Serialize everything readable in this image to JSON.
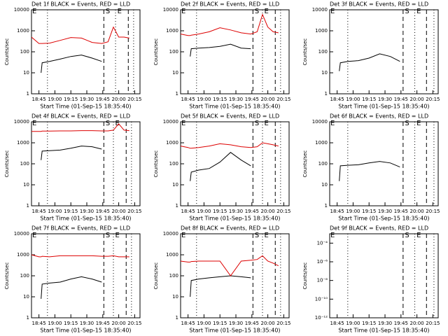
{
  "chart_data": [
    {
      "type": "line",
      "title": "Det 1f BLACK = Events, RED = LLD",
      "ylabel": "Counts/sec",
      "xlabel": "Start Time (01-Sep-15 18:35:40)",
      "log_y": true,
      "xlim": [
        "18:38",
        "20:20"
      ],
      "xticks": [
        "18:45",
        "19:00",
        "19:15",
        "19:30",
        "19:45",
        "20:00",
        "20:15"
      ],
      "ylim": [
        1,
        10000
      ],
      "yticks": [
        1,
        10,
        100,
        1000,
        10000
      ],
      "x": [
        "18:38",
        "18:45",
        "18:47",
        "18:48",
        "18:55",
        "19:05",
        "19:15",
        "19:25",
        "19:35",
        "19:44",
        "19:50",
        "19:55",
        "20:00",
        "20:05",
        "20:10"
      ],
      "series": [
        {
          "name": "Events",
          "color": "#000000",
          "values": [
            null,
            null,
            10,
            30,
            35,
            45,
            60,
            70,
            50,
            35,
            null,
            null,
            null,
            null,
            null
          ]
        },
        {
          "name": "LLD",
          "color": "#dd0000",
          "values": [
            500,
            250,
            250,
            250,
            260,
            350,
            480,
            450,
            280,
            250,
            300,
            1500,
            500,
            500,
            450
          ]
        }
      ],
      "lines": [
        {
          "x": "18:53",
          "style": "dotted"
        },
        {
          "x": "19:46",
          "style": "dashed"
        },
        {
          "x": "19:57",
          "style": "dotted"
        },
        {
          "x": "20:09",
          "style": "dashed"
        },
        {
          "x": "20:14",
          "style": "dotted"
        }
      ],
      "annotations": [
        {
          "x": "18:38",
          "text": "E"
        },
        {
          "x": "19:47",
          "text": "S"
        },
        {
          "x": "19:58",
          "text": "E"
        }
      ]
    },
    {
      "type": "line",
      "title": "Det 2f BLACK = Events, RED = LLD",
      "ylabel": "Counts/sec",
      "xlabel": "Start Time (01-Sep-15 18:35:40)",
      "log_y": true,
      "xlim": [
        "18:38",
        "20:20"
      ],
      "xticks": [
        "18:45",
        "19:00",
        "19:15",
        "19:30",
        "19:45",
        "20:00",
        "20:15"
      ],
      "ylim": [
        1,
        10000
      ],
      "yticks": [
        1,
        10,
        100,
        1000,
        10000
      ],
      "x": [
        "18:38",
        "18:45",
        "18:47",
        "18:48",
        "18:55",
        "19:05",
        "19:15",
        "19:25",
        "19:35",
        "19:44",
        "19:50",
        "19:55",
        "20:00",
        "20:05",
        "20:10"
      ],
      "series": [
        {
          "name": "Events",
          "color": "#000000",
          "values": [
            null,
            null,
            60,
            140,
            150,
            160,
            180,
            230,
            150,
            140,
            null,
            null,
            null,
            null,
            null
          ]
        },
        {
          "name": "LLD",
          "color": "#dd0000",
          "values": [
            700,
            600,
            600,
            620,
            700,
            900,
            1400,
            1100,
            800,
            700,
            900,
            6000,
            1500,
            900,
            800
          ]
        }
      ],
      "lines": [
        {
          "x": "18:53",
          "style": "dotted"
        },
        {
          "x": "19:46",
          "style": "dashed"
        },
        {
          "x": "19:55",
          "style": "dotted"
        },
        {
          "x": "20:07",
          "style": "dashed"
        },
        {
          "x": "20:12",
          "style": "dotted"
        }
      ],
      "annotations": [
        {
          "x": "18:38",
          "text": "E"
        },
        {
          "x": "19:47",
          "text": "S"
        },
        {
          "x": "19:56",
          "text": "E"
        }
      ]
    },
    {
      "type": "line",
      "title": "Det 3f BLACK = Events, RED = LLD",
      "ylabel": "Counts/sec",
      "xlabel": "Start Time (01-Sep-15 18:35:40)",
      "log_y": true,
      "xlim": [
        "18:38",
        "20:20"
      ],
      "xticks": [
        "18:45",
        "19:00",
        "19:15",
        "19:30",
        "19:45",
        "20:00",
        "20:15"
      ],
      "ylim": [
        1,
        10000
      ],
      "yticks": [
        1,
        10,
        100,
        1000,
        10000
      ],
      "x": [
        "18:38",
        "18:45",
        "18:47",
        "18:48",
        "18:55",
        "19:05",
        "19:15",
        "19:25",
        "19:35",
        "19:44",
        "19:50",
        "19:55",
        "20:00",
        "20:05",
        "20:10"
      ],
      "series": [
        {
          "name": "Events",
          "color": "#000000",
          "values": [
            null,
            null,
            12,
            30,
            35,
            38,
            50,
            80,
            60,
            35,
            null,
            null,
            null,
            null,
            null
          ]
        }
      ],
      "lines": [
        {
          "x": "18:55",
          "style": "dotted"
        },
        {
          "x": "19:47",
          "style": "dashed"
        },
        {
          "x": "19:58",
          "style": "dotted"
        },
        {
          "x": "20:09",
          "style": "dashed"
        },
        {
          "x": "20:16",
          "style": "dotted"
        }
      ],
      "annotations": [
        {
          "x": "18:38",
          "text": "E"
        },
        {
          "x": "19:48",
          "text": "S"
        },
        {
          "x": "19:59",
          "text": "E"
        }
      ]
    },
    {
      "type": "line",
      "title": "Det 4f BLACK = Events, RED = LLD",
      "ylabel": "Counts/sec",
      "xlabel": "Start Time (01-Sep-15 18:35:40)",
      "log_y": true,
      "xlim": [
        "18:38",
        "20:20"
      ],
      "xticks": [
        "18:45",
        "19:00",
        "19:15",
        "19:30",
        "19:45",
        "20:00",
        "20:15"
      ],
      "ylim": [
        1,
        10000
      ],
      "yticks": [
        1,
        10,
        100,
        1000,
        10000
      ],
      "x": [
        "18:38",
        "18:45",
        "18:47",
        "18:48",
        "18:55",
        "19:05",
        "19:15",
        "19:25",
        "19:35",
        "19:44",
        "19:50",
        "19:55",
        "20:00",
        "20:05",
        "20:10"
      ],
      "series": [
        {
          "name": "Events",
          "color": "#000000",
          "values": [
            null,
            null,
            150,
            400,
            420,
            450,
            550,
            700,
            650,
            500,
            null,
            null,
            null,
            null,
            null
          ]
        },
        {
          "name": "LLD",
          "color": "#dd0000",
          "values": [
            3500,
            3500,
            3500,
            3600,
            3600,
            3700,
            3700,
            3800,
            3800,
            3700,
            3700,
            4000,
            8000,
            4000,
            3800
          ]
        }
      ],
      "lines": [
        {
          "x": "18:53",
          "style": "dotted"
        },
        {
          "x": "19:46",
          "style": "dashed"
        },
        {
          "x": "19:55",
          "style": "dotted"
        },
        {
          "x": "20:07",
          "style": "dashed"
        },
        {
          "x": "20:12",
          "style": "dotted"
        }
      ],
      "annotations": [
        {
          "x": "18:38",
          "text": "E"
        },
        {
          "x": "19:47",
          "text": "S"
        },
        {
          "x": "19:56",
          "text": "E"
        }
      ]
    },
    {
      "type": "line",
      "title": "Det 5f BLACK = Events, RED = LLD",
      "ylabel": "Counts/sec",
      "xlabel": "Start Time (01-Sep-15 18:35:40)",
      "log_y": true,
      "xlim": [
        "18:38",
        "20:20"
      ],
      "xticks": [
        "18:45",
        "19:00",
        "19:15",
        "19:30",
        "19:45",
        "20:00",
        "20:15"
      ],
      "ylim": [
        1,
        10000
      ],
      "yticks": [
        1,
        10,
        100,
        1000,
        10000
      ],
      "x": [
        "18:38",
        "18:45",
        "18:47",
        "18:48",
        "18:55",
        "19:05",
        "19:15",
        "19:25",
        "19:35",
        "19:44",
        "19:50",
        "19:55",
        "20:00",
        "20:05",
        "20:10"
      ],
      "series": [
        {
          "name": "Events",
          "color": "#000000",
          "values": [
            null,
            null,
            15,
            40,
            50,
            60,
            120,
            350,
            150,
            80,
            null,
            null,
            null,
            null,
            null
          ]
        },
        {
          "name": "LLD",
          "color": "#dd0000",
          "values": [
            700,
            600,
            550,
            550,
            600,
            700,
            900,
            800,
            650,
            600,
            650,
            1000,
            900,
            800,
            700
          ]
        }
      ],
      "lines": [
        {
          "x": "18:53",
          "style": "dotted"
        },
        {
          "x": "19:46",
          "style": "dashed"
        },
        {
          "x": "19:55",
          "style": "dotted"
        },
        {
          "x": "20:07",
          "style": "dashed"
        },
        {
          "x": "20:12",
          "style": "dotted"
        }
      ],
      "annotations": [
        {
          "x": "18:38",
          "text": "E"
        },
        {
          "x": "19:47",
          "text": "S"
        },
        {
          "x": "19:56",
          "text": "E"
        }
      ]
    },
    {
      "type": "line",
      "title": "Det 6f BLACK = Events, RED = LLD",
      "ylabel": "Counts/sec",
      "xlabel": "Start Time (01-Sep-15 18:35:40)",
      "log_y": true,
      "xlim": [
        "18:38",
        "20:20"
      ],
      "xticks": [
        "18:45",
        "19:00",
        "19:15",
        "19:30",
        "19:45",
        "20:00",
        "20:15"
      ],
      "ylim": [
        1,
        10000
      ],
      "yticks": [
        1,
        10,
        100,
        1000,
        10000
      ],
      "x": [
        "18:38",
        "18:45",
        "18:47",
        "18:48",
        "18:55",
        "19:05",
        "19:15",
        "19:25",
        "19:35",
        "19:44",
        "19:50",
        "19:55",
        "20:00",
        "20:05",
        "20:10"
      ],
      "series": [
        {
          "name": "Events",
          "color": "#000000",
          "values": [
            null,
            null,
            15,
            80,
            85,
            90,
            110,
            130,
            110,
            70,
            null,
            null,
            null,
            null,
            null
          ]
        }
      ],
      "lines": [
        {
          "x": "18:55",
          "style": "dotted"
        },
        {
          "x": "19:47",
          "style": "dashed"
        },
        {
          "x": "19:58",
          "style": "dotted"
        },
        {
          "x": "20:09",
          "style": "dashed"
        },
        {
          "x": "20:16",
          "style": "dotted"
        }
      ],
      "annotations": [
        {
          "x": "18:38",
          "text": "E"
        },
        {
          "x": "19:48",
          "text": "S"
        },
        {
          "x": "19:59",
          "text": "E"
        }
      ]
    },
    {
      "type": "line",
      "title": "Det 7f BLACK = Events, RED = LLD",
      "ylabel": "Counts/sec",
      "xlabel": "Start Time (01-Sep-15 18:35:40)",
      "log_y": true,
      "xlim": [
        "18:38",
        "20:20"
      ],
      "xticks": [
        "18:45",
        "19:00",
        "19:15",
        "19:30",
        "19:45",
        "20:00",
        "20:15"
      ],
      "ylim": [
        1,
        10000
      ],
      "yticks": [
        1,
        10,
        100,
        1000,
        10000
      ],
      "x": [
        "18:38",
        "18:45",
        "18:47",
        "18:48",
        "18:55",
        "19:05",
        "19:15",
        "19:25",
        "19:35",
        "19:44",
        "19:50",
        "19:55",
        "20:00",
        "20:05",
        "20:10"
      ],
      "series": [
        {
          "name": "Events",
          "color": "#000000",
          "values": [
            null,
            null,
            8,
            40,
            45,
            50,
            70,
            90,
            70,
            50,
            null,
            null,
            null,
            null,
            null
          ]
        },
        {
          "name": "LLD",
          "color": "#dd0000",
          "values": [
            1000,
            800,
            800,
            850,
            800,
            900,
            900,
            900,
            900,
            850,
            850,
            900,
            800,
            800,
            800
          ]
        }
      ],
      "lines": [
        {
          "x": "18:53",
          "style": "dotted"
        },
        {
          "x": "19:46",
          "style": "dashed"
        },
        {
          "x": "19:55",
          "style": "dotted"
        },
        {
          "x": "20:07",
          "style": "dashed"
        },
        {
          "x": "20:12",
          "style": "dotted"
        }
      ],
      "annotations": [
        {
          "x": "18:38",
          "text": "E"
        },
        {
          "x": "19:47",
          "text": "S"
        },
        {
          "x": "19:56",
          "text": "E"
        }
      ]
    },
    {
      "type": "line",
      "title": "Det 8f BLACK = Events, RED = LLD",
      "ylabel": "Counts/sec",
      "xlabel": "Start Time (01-Sep-15 18:35:40)",
      "log_y": true,
      "xlim": [
        "18:38",
        "20:20"
      ],
      "xticks": [
        "18:45",
        "19:00",
        "19:15",
        "19:30",
        "19:45",
        "20:00",
        "20:15"
      ],
      "ylim": [
        1,
        10000
      ],
      "yticks": [
        1,
        10,
        100,
        1000,
        10000
      ],
      "x": [
        "18:38",
        "18:45",
        "18:47",
        "18:48",
        "18:55",
        "19:05",
        "19:15",
        "19:25",
        "19:35",
        "19:44",
        "19:50",
        "19:55",
        "20:00",
        "20:05",
        "20:10"
      ],
      "series": [
        {
          "name": "Events",
          "color": "#000000",
          "values": [
            null,
            null,
            10,
            60,
            70,
            80,
            90,
            100,
            90,
            80,
            null,
            null,
            null,
            null,
            null
          ]
        },
        {
          "name": "LLD",
          "color": "#dd0000",
          "values": [
            500,
            450,
            450,
            480,
            500,
            500,
            500,
            100,
            500,
            550,
            600,
            900,
            500,
            400,
            300
          ]
        }
      ],
      "lines": [
        {
          "x": "18:53",
          "style": "dotted"
        },
        {
          "x": "19:46",
          "style": "dashed"
        },
        {
          "x": "19:55",
          "style": "dotted"
        },
        {
          "x": "20:07",
          "style": "dashed"
        },
        {
          "x": "20:12",
          "style": "dotted"
        }
      ],
      "annotations": [
        {
          "x": "18:38",
          "text": "E"
        },
        {
          "x": "19:47",
          "text": "S"
        },
        {
          "x": "19:56",
          "text": "E"
        }
      ]
    },
    {
      "type": "line",
      "title": "Det 9f BLACK = Events, RED = LLD",
      "ylabel": "Counts/sec",
      "xlabel": "Start Time (01-Sep-15 18:35:40)",
      "log_y": true,
      "xlim": [
        "18:38",
        "20:20"
      ],
      "xticks": [
        "18:45",
        "19:00",
        "19:15",
        "19:30",
        "19:45",
        "20:00",
        "20:15"
      ],
      "ylim": [
        1e-12,
        0.001
      ],
      "yticks": [
        {
          "value": 1e-12,
          "label": "10⁻¹²"
        },
        {
          "value": 1e-10,
          "label": "10⁻¹⁰"
        },
        {
          "value": 1e-08,
          "label": "10⁻⁸"
        },
        {
          "value": 1e-06,
          "label": "10⁻⁶"
        },
        {
          "value": 0.0001,
          "label": "10⁻⁴"
        }
      ],
      "x": [],
      "series": [],
      "lines": [
        {
          "x": "18:55",
          "style": "dotted"
        },
        {
          "x": "19:47",
          "style": "dashed"
        },
        {
          "x": "19:58",
          "style": "dotted"
        },
        {
          "x": "20:09",
          "style": "dashed"
        },
        {
          "x": "20:16",
          "style": "dotted"
        }
      ],
      "annotations": [
        {
          "x": "18:38",
          "text": "E"
        },
        {
          "x": "19:48",
          "text": "S"
        },
        {
          "x": "19:59",
          "text": "E"
        }
      ]
    }
  ]
}
